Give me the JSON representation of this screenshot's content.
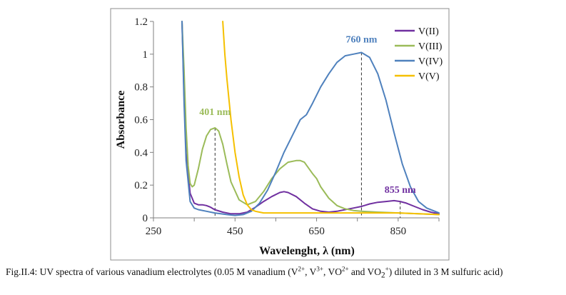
{
  "chart_data": {
    "type": "line",
    "title": "",
    "xlabel": "Wavelenght, λ (nm)",
    "ylabel": "Absorbance",
    "xlim": [
      250,
      950
    ],
    "ylim": [
      0,
      1.2
    ],
    "xticks": [
      250,
      450,
      650,
      850
    ],
    "yticks": [
      0,
      0.2,
      0.4,
      0.6,
      0.8,
      1,
      1.2
    ],
    "ytick_labels": [
      "0",
      "0.2",
      "0.4",
      "0.6",
      "0.8",
      "1",
      "1.2"
    ],
    "grid": false,
    "legend_position": "top-right",
    "series": [
      {
        "name": "V(II)",
        "color": "#7030a0",
        "x": [
          320,
          325,
          330,
          340,
          350,
          360,
          370,
          380,
          390,
          400,
          420,
          440,
          460,
          480,
          500,
          520,
          540,
          560,
          570,
          580,
          600,
          620,
          640,
          660,
          680,
          700,
          720,
          740,
          760,
          780,
          800,
          820,
          840,
          855,
          870,
          890,
          910,
          930,
          950
        ],
        "y": [
          1.2,
          0.75,
          0.4,
          0.15,
          0.09,
          0.08,
          0.08,
          0.075,
          0.065,
          0.05,
          0.035,
          0.025,
          0.025,
          0.035,
          0.065,
          0.1,
          0.13,
          0.155,
          0.16,
          0.155,
          0.13,
          0.09,
          0.055,
          0.04,
          0.035,
          0.04,
          0.05,
          0.06,
          0.07,
          0.085,
          0.095,
          0.1,
          0.105,
          0.1,
          0.09,
          0.07,
          0.05,
          0.035,
          0.025
        ]
      },
      {
        "name": "V(III)",
        "color": "#9bbb59",
        "x": [
          320,
          325,
          330,
          335,
          340,
          345,
          350,
          360,
          370,
          380,
          390,
          401,
          410,
          420,
          430,
          440,
          460,
          480,
          500,
          520,
          540,
          560,
          580,
          600,
          610,
          620,
          640,
          650,
          660,
          680,
          700,
          720,
          740,
          760,
          800,
          850,
          900,
          950
        ],
        "y": [
          1.2,
          0.9,
          0.55,
          0.32,
          0.21,
          0.19,
          0.2,
          0.3,
          0.42,
          0.5,
          0.54,
          0.55,
          0.53,
          0.45,
          0.33,
          0.22,
          0.11,
          0.08,
          0.1,
          0.16,
          0.24,
          0.3,
          0.34,
          0.35,
          0.35,
          0.34,
          0.27,
          0.24,
          0.19,
          0.12,
          0.075,
          0.055,
          0.045,
          0.04,
          0.035,
          0.03,
          0.025,
          0.02
        ]
      },
      {
        "name": "V(IV)",
        "color": "#4f81bd",
        "x": [
          320,
          325,
          330,
          340,
          350,
          360,
          380,
          400,
          430,
          450,
          470,
          490,
          510,
          530,
          550,
          570,
          590,
          610,
          625,
          640,
          660,
          680,
          700,
          720,
          740,
          760,
          780,
          800,
          820,
          840,
          860,
          880,
          900,
          920,
          940,
          950
        ],
        "y": [
          1.2,
          0.7,
          0.35,
          0.1,
          0.06,
          0.05,
          0.04,
          0.03,
          0.02,
          0.015,
          0.02,
          0.04,
          0.09,
          0.17,
          0.28,
          0.4,
          0.5,
          0.6,
          0.63,
          0.7,
          0.8,
          0.88,
          0.95,
          0.99,
          1.0,
          1.01,
          0.98,
          0.88,
          0.72,
          0.52,
          0.33,
          0.19,
          0.1,
          0.06,
          0.04,
          0.03
        ]
      },
      {
        "name": "V(V)",
        "color": "#f5c000",
        "x": [
          420,
          425,
          430,
          440,
          450,
          460,
          470,
          480,
          490,
          500,
          510,
          520,
          530,
          550,
          600,
          650,
          700,
          750,
          800,
          850,
          900,
          950
        ],
        "y": [
          1.2,
          1.0,
          0.85,
          0.6,
          0.4,
          0.25,
          0.14,
          0.08,
          0.05,
          0.04,
          0.035,
          0.03,
          0.03,
          0.03,
          0.03,
          0.03,
          0.03,
          0.03,
          0.03,
          0.03,
          0.025,
          0.02
        ]
      }
    ],
    "annotations": [
      {
        "text": "401 nm",
        "x": 401,
        "y": 0.55,
        "color": "#9bbb59"
      },
      {
        "text": "760 nm",
        "x": 760,
        "y": 1.01,
        "color": "#4f81bd"
      },
      {
        "text": "855 nm",
        "x": 855,
        "y": 0.1,
        "color": "#7030a0"
      }
    ]
  },
  "caption": {
    "prefix": "Fig.II.4: UV spectra of various vanadium electrolytes (0.05 M vanadium (V",
    "sup1": "2+",
    "mid1": ", V",
    "sup2": "3+",
    "mid2": ", VO",
    "sup3": "2+",
    "mid3": " and VO",
    "sub4": "2",
    "sup4": "+",
    "suffix": ") diluted in 3 M sulfuric acid)"
  }
}
